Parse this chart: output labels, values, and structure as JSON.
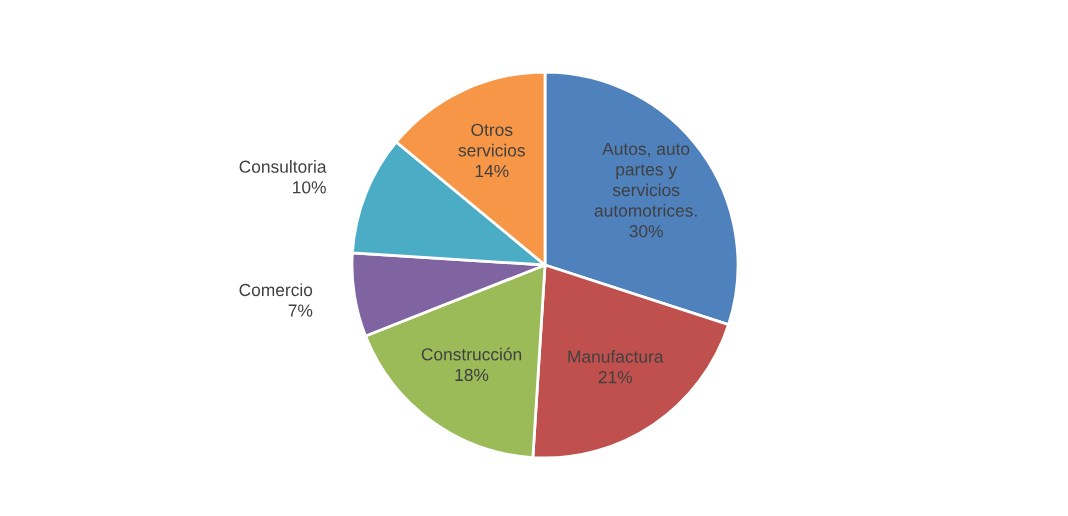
{
  "chart_data": {
    "type": "pie",
    "categories": [
      "Autos, auto partes y servicios automotrices.",
      "Manufactura",
      "Construcción",
      "Comercio",
      "Consultoria",
      "Otros servicios"
    ],
    "values": [
      30,
      21,
      18,
      7,
      10,
      14
    ],
    "value_labels": [
      "30%",
      "21%",
      "18%",
      "7%",
      "10%",
      "14%"
    ],
    "colors": [
      "#4f81bd",
      "#c0504d",
      "#9bbb59",
      "#8064a2",
      "#4bacc6",
      "#f79646"
    ],
    "legend": false
  }
}
